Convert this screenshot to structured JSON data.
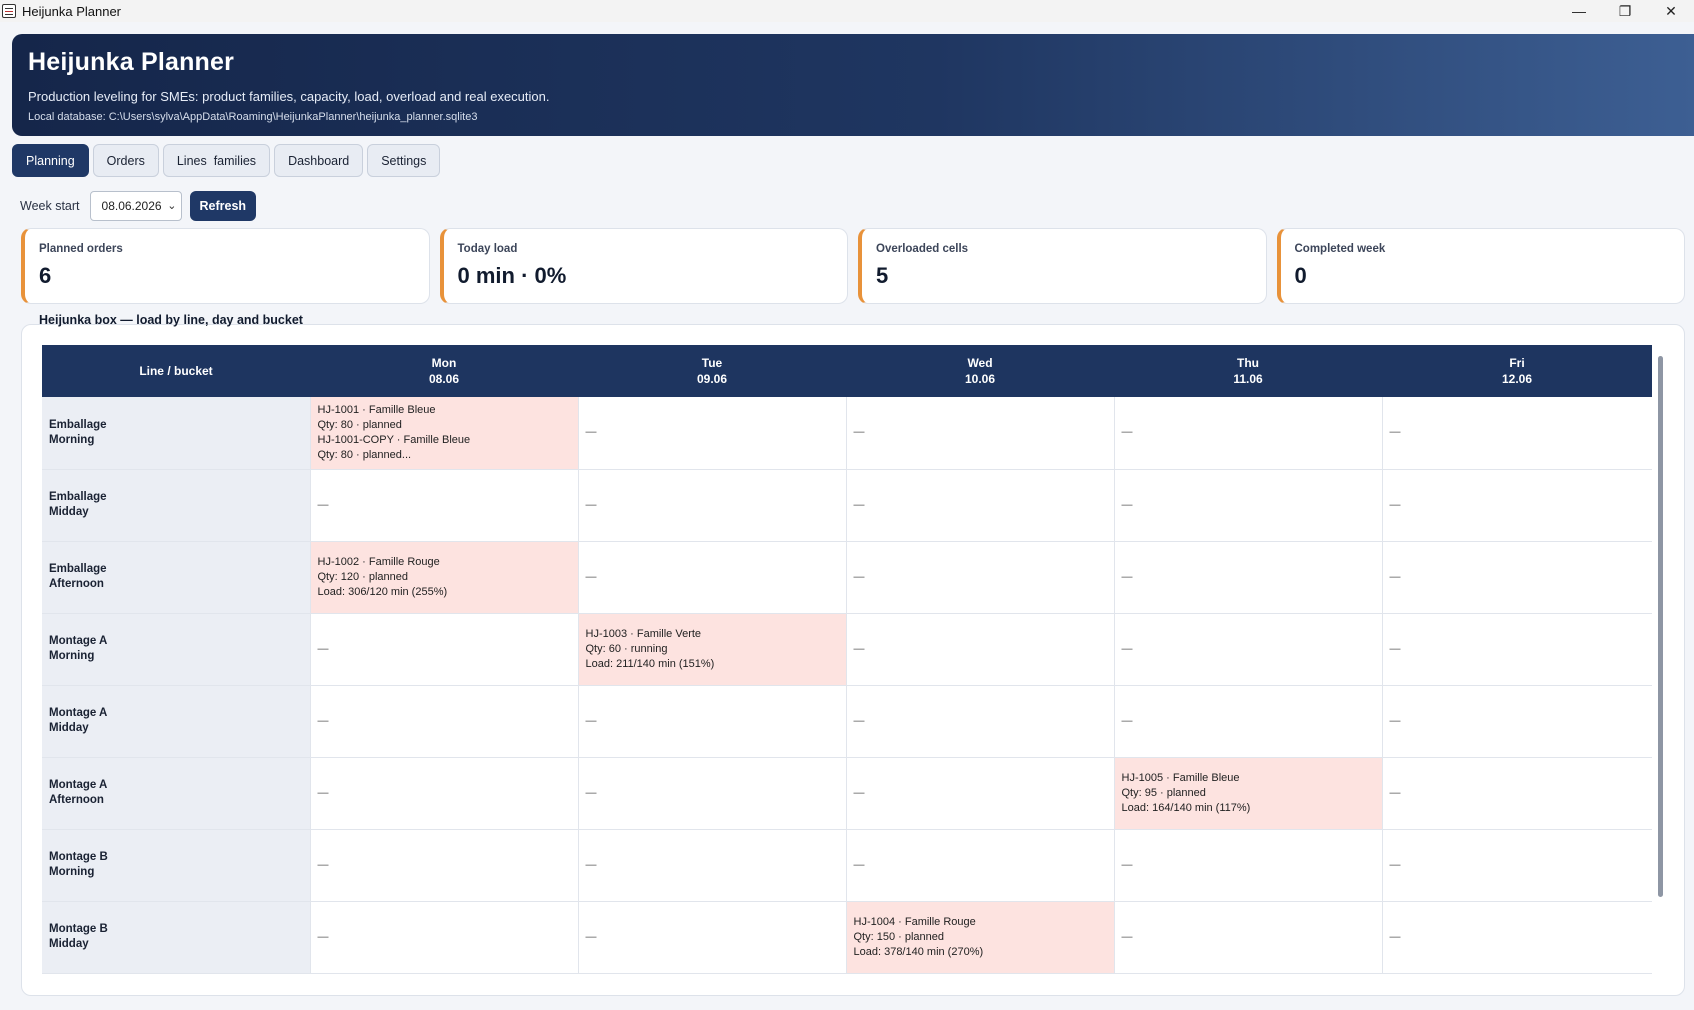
{
  "window": {
    "title": "Heijunka Planner",
    "controls": [
      "—",
      "❐",
      "✕"
    ]
  },
  "header": {
    "title": "Heijunka Planner",
    "subtitle": "Production leveling for SMEs: product families, capacity, load, overload and real execution.",
    "db_path": "Local database: C:\\Users\\sylva\\AppData\\Roaming\\HeijunkaPlanner\\heijunka_planner.sqlite3"
  },
  "tabs": [
    {
      "label": "Planning",
      "active": true
    },
    {
      "label": "Orders",
      "active": false
    },
    {
      "label": "Lines  families",
      "active": false
    },
    {
      "label": "Dashboard",
      "active": false
    },
    {
      "label": "Settings",
      "active": false
    }
  ],
  "week": {
    "label": "Week start",
    "value": "08.06.2026",
    "refresh_label": "Refresh"
  },
  "kpis": [
    {
      "label": "Planned orders",
      "value": "6"
    },
    {
      "label": "Today load",
      "value": "0 min · 0%"
    },
    {
      "label": "Overloaded cells",
      "value": "5"
    },
    {
      "label": "Completed week",
      "value": "0"
    }
  ],
  "kpi_accent": "#e8923a",
  "box": {
    "title": "Heijunka box — load by line, day and bucket",
    "corner_header": "Line / bucket",
    "days": [
      {
        "name": "Mon",
        "date": "08.06"
      },
      {
        "name": "Tue",
        "date": "09.06"
      },
      {
        "name": "Wed",
        "date": "10.06"
      },
      {
        "name": "Thu",
        "date": "11.06"
      },
      {
        "name": "Fri",
        "date": "12.06"
      }
    ],
    "rows": [
      {
        "line": "Emballage",
        "bucket": "Morning",
        "cells": [
          {
            "over": true,
            "lines": [
              "HJ-1001 · Famille Bleue",
              "Qty: 80 · planned",
              "HJ-1001-COPY · Famille Bleue",
              "Qty: 80 · planned..."
            ]
          },
          {
            "over": false,
            "lines": [
              "—"
            ]
          },
          {
            "over": false,
            "lines": [
              "—"
            ]
          },
          {
            "over": false,
            "lines": [
              "—"
            ]
          },
          {
            "over": false,
            "lines": [
              "—"
            ]
          }
        ]
      },
      {
        "line": "Emballage",
        "bucket": "Midday",
        "cells": [
          {
            "over": false,
            "lines": [
              "—"
            ]
          },
          {
            "over": false,
            "lines": [
              "—"
            ]
          },
          {
            "over": false,
            "lines": [
              "—"
            ]
          },
          {
            "over": false,
            "lines": [
              "—"
            ]
          },
          {
            "over": false,
            "lines": [
              "—"
            ]
          }
        ]
      },
      {
        "line": "Emballage",
        "bucket": "Afternoon",
        "cells": [
          {
            "over": true,
            "lines": [
              "HJ-1002 · Famille Rouge",
              "Qty: 120 · planned",
              "Load: 306/120 min (255%)"
            ]
          },
          {
            "over": false,
            "lines": [
              "—"
            ]
          },
          {
            "over": false,
            "lines": [
              "—"
            ]
          },
          {
            "over": false,
            "lines": [
              "—"
            ]
          },
          {
            "over": false,
            "lines": [
              "—"
            ]
          }
        ]
      },
      {
        "line": "Montage A",
        "bucket": "Morning",
        "cells": [
          {
            "over": false,
            "lines": [
              "—"
            ]
          },
          {
            "over": true,
            "lines": [
              "HJ-1003 · Famille Verte",
              "Qty: 60 · running",
              "Load: 211/140 min (151%)"
            ]
          },
          {
            "over": false,
            "lines": [
              "—"
            ]
          },
          {
            "over": false,
            "lines": [
              "—"
            ]
          },
          {
            "over": false,
            "lines": [
              "—"
            ]
          }
        ]
      },
      {
        "line": "Montage A",
        "bucket": "Midday",
        "cells": [
          {
            "over": false,
            "lines": [
              "—"
            ]
          },
          {
            "over": false,
            "lines": [
              "—"
            ]
          },
          {
            "over": false,
            "lines": [
              "—"
            ]
          },
          {
            "over": false,
            "lines": [
              "—"
            ]
          },
          {
            "over": false,
            "lines": [
              "—"
            ]
          }
        ]
      },
      {
        "line": "Montage A",
        "bucket": "Afternoon",
        "cells": [
          {
            "over": false,
            "lines": [
              "—"
            ]
          },
          {
            "over": false,
            "lines": [
              "—"
            ]
          },
          {
            "over": false,
            "lines": [
              "—"
            ]
          },
          {
            "over": true,
            "lines": [
              "HJ-1005 · Famille Bleue",
              "Qty: 95 · planned",
              "Load: 164/140 min (117%)"
            ]
          },
          {
            "over": false,
            "lines": [
              "—"
            ]
          }
        ]
      },
      {
        "line": "Montage B",
        "bucket": "Morning",
        "cells": [
          {
            "over": false,
            "lines": [
              "—"
            ]
          },
          {
            "over": false,
            "lines": [
              "—"
            ]
          },
          {
            "over": false,
            "lines": [
              "—"
            ]
          },
          {
            "over": false,
            "lines": [
              "—"
            ]
          },
          {
            "over": false,
            "lines": [
              "—"
            ]
          }
        ]
      },
      {
        "line": "Montage B",
        "bucket": "Midday",
        "cells": [
          {
            "over": false,
            "lines": [
              "—"
            ]
          },
          {
            "over": false,
            "lines": [
              "—"
            ]
          },
          {
            "over": true,
            "lines": [
              "HJ-1004 · Famille Rouge",
              "Qty: 150 · planned",
              "Load: 378/140 min (270%)"
            ]
          },
          {
            "over": false,
            "lines": [
              "—"
            ]
          },
          {
            "over": false,
            "lines": [
              "—"
            ]
          }
        ]
      }
    ]
  }
}
